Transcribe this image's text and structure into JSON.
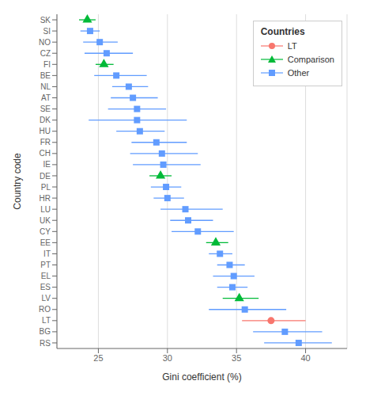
{
  "chart_data": {
    "type": "scatter",
    "orientation": "horizontal",
    "xlabel": "Gini coefficient (%)",
    "ylabel": "Country code",
    "legend_title": "Countries",
    "legend": "upper right",
    "grid": true,
    "xlim": [
      22.0,
      43.0
    ],
    "xticks": [
      25,
      30,
      35,
      40
    ],
    "categories": [
      "SK",
      "SI",
      "NO",
      "CZ",
      "FI",
      "BE",
      "NL",
      "AT",
      "SE",
      "DK",
      "HU",
      "FR",
      "CH",
      "IE",
      "DE",
      "PL",
      "HR",
      "LU",
      "UK",
      "CY",
      "EE",
      "IT",
      "PT",
      "EL",
      "ES",
      "LV",
      "RO",
      "LT",
      "BG",
      "RS"
    ],
    "series": [
      {
        "name": "LT",
        "color": "#F8766D",
        "marker": "circle",
        "values": [
          null,
          null,
          null,
          null,
          null,
          null,
          null,
          null,
          null,
          null,
          null,
          null,
          null,
          null,
          null,
          null,
          null,
          null,
          null,
          null,
          null,
          null,
          null,
          null,
          null,
          null,
          null,
          37.5,
          null,
          null
        ],
        "ci_low": [
          null,
          null,
          null,
          null,
          null,
          null,
          null,
          null,
          null,
          null,
          null,
          null,
          null,
          null,
          null,
          null,
          null,
          null,
          null,
          null,
          null,
          null,
          null,
          null,
          null,
          null,
          null,
          35.4,
          null,
          null
        ],
        "ci_high": [
          null,
          null,
          null,
          null,
          null,
          null,
          null,
          null,
          null,
          null,
          null,
          null,
          null,
          null,
          null,
          null,
          null,
          null,
          null,
          null,
          null,
          null,
          null,
          null,
          null,
          null,
          null,
          40.0,
          null,
          null
        ]
      },
      {
        "name": "Comparison",
        "color": "#00BA38",
        "marker": "triangle",
        "values": [
          24.2,
          null,
          null,
          null,
          25.4,
          null,
          null,
          null,
          null,
          null,
          null,
          null,
          null,
          null,
          29.5,
          null,
          null,
          null,
          null,
          null,
          33.5,
          null,
          null,
          null,
          null,
          35.2,
          null,
          null,
          null,
          null
        ],
        "ci_low": [
          23.6,
          null,
          null,
          null,
          24.8,
          null,
          null,
          null,
          null,
          null,
          null,
          null,
          null,
          null,
          28.7,
          null,
          null,
          null,
          null,
          null,
          32.8,
          null,
          null,
          null,
          null,
          34.0,
          null,
          null,
          null,
          null
        ],
        "ci_high": [
          24.8,
          null,
          null,
          null,
          26.1,
          null,
          null,
          null,
          null,
          null,
          null,
          null,
          null,
          null,
          30.3,
          null,
          null,
          null,
          null,
          null,
          34.4,
          null,
          null,
          null,
          null,
          36.6,
          null,
          null,
          null,
          null
        ]
      },
      {
        "name": "Other",
        "color": "#619CFF",
        "marker": "square",
        "values": [
          null,
          24.4,
          25.1,
          25.6,
          null,
          26.3,
          27.2,
          27.5,
          27.8,
          27.8,
          28.0,
          29.2,
          29.6,
          29.7,
          null,
          29.9,
          30.0,
          31.3,
          31.5,
          32.2,
          null,
          33.8,
          34.5,
          34.8,
          34.7,
          null,
          35.6,
          null,
          38.5,
          39.5
        ],
        "ci_low": [
          null,
          23.7,
          23.9,
          24.0,
          null,
          24.7,
          26.0,
          25.9,
          25.7,
          24.3,
          26.3,
          27.4,
          27.3,
          27.5,
          null,
          28.8,
          29.0,
          29.5,
          30.2,
          30.3,
          null,
          33.0,
          33.6,
          33.3,
          33.6,
          null,
          33.0,
          null,
          36.2,
          37.0
        ],
        "ci_high": [
          null,
          25.1,
          26.4,
          27.5,
          null,
          28.5,
          28.6,
          29.3,
          29.9,
          31.4,
          29.8,
          31.4,
          32.2,
          32.4,
          null,
          31.0,
          31.2,
          34.0,
          33.3,
          34.8,
          null,
          34.7,
          35.6,
          36.3,
          35.8,
          null,
          38.6,
          null,
          41.2,
          41.9
        ]
      }
    ]
  }
}
